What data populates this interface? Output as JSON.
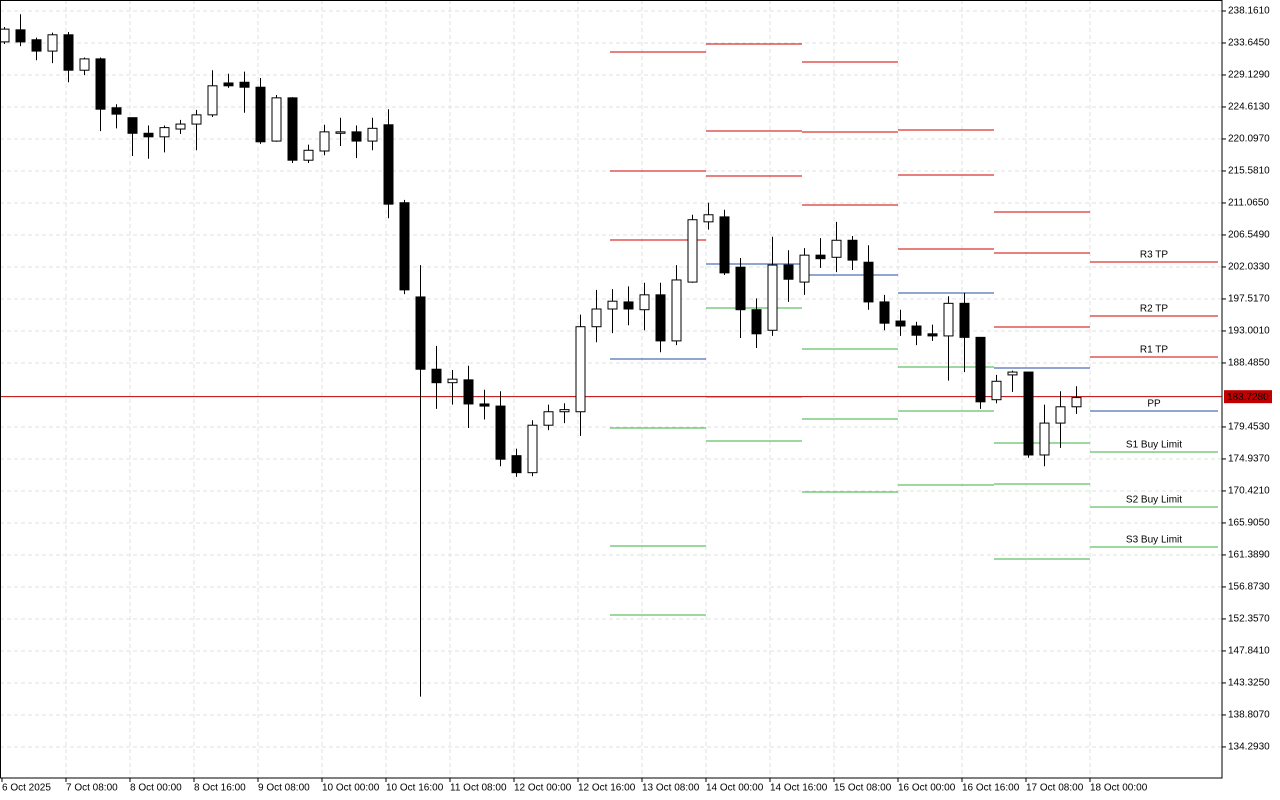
{
  "chart_data": {
    "type": "candlestick",
    "categories": [
      "6 Oct 2025",
      null,
      null,
      null,
      "7 Oct 08:00",
      null,
      null,
      null,
      "8 Oct 00:00",
      null,
      null,
      null,
      "8 Oct 16:00",
      null,
      null,
      null,
      "9 Oct 08:00",
      null,
      null,
      null,
      "10 Oct 00:00",
      null,
      null,
      null,
      "10 Oct 16:00",
      null,
      null,
      null,
      "11 Oct 08:00",
      null,
      null,
      null,
      "12 Oct 00:00",
      null,
      null,
      null,
      "12 Oct 16:00",
      null,
      null,
      null,
      "13 Oct 08:00",
      null,
      null,
      null,
      "14 Oct 00:00",
      null,
      null,
      null,
      "14 Oct 16:00",
      null,
      null,
      null,
      "15 Oct 08:00",
      null,
      null,
      null,
      "16 Oct 00:00",
      null,
      null,
      null,
      "16 Oct 16:00",
      null,
      null,
      null,
      "17 Oct 08:00",
      null,
      null,
      null,
      "18 Oct 00:00"
    ],
    "open": [
      233.8,
      235.5,
      234.1,
      232.5,
      234.8,
      229.8,
      231.4,
      224.5,
      223.1,
      220.9,
      220.4,
      221.5,
      222.2,
      223.5,
      228.0,
      228.1,
      227.4,
      219.8,
      225.9,
      217.1,
      218.4,
      220.9,
      221.1,
      219.8,
      222.1,
      211.1,
      197.8,
      187.6,
      185.7,
      186.1,
      182.7,
      182.4,
      175.4,
      173.0,
      179.7,
      181.6,
      181.6,
      193.6,
      196.1,
      197.1,
      196.0,
      198.1,
      191.6,
      199.9,
      208.4,
      209.1,
      202.0,
      196.0,
      193.1,
      202.3,
      199.9,
      203.7,
      203.4,
      205.8,
      202.7,
      197.1,
      194.4,
      193.7,
      192.6,
      192.3,
      196.9,
      192.1,
      183.3,
      186.8,
      187.2,
      175.5,
      180.0,
      182.3,
      null
    ],
    "high": [
      235.9,
      237.7,
      234.4,
      235.1,
      235.2,
      231.6,
      231.6,
      225.0,
      223.1,
      222.0,
      222.0,
      222.8,
      224.2,
      229.8,
      229.3,
      229.6,
      228.7,
      226.3,
      226.0,
      219.3,
      222.1,
      223.1,
      222.0,
      223.1,
      224.3,
      211.5,
      202.3,
      190.9,
      187.5,
      188.1,
      184.7,
      184.5,
      176.4,
      180.4,
      182.6,
      182.8,
      195.3,
      198.8,
      198.9,
      199.3,
      199.8,
      199.8,
      202.3,
      209.4,
      211.1,
      210.1,
      203.3,
      197.6,
      206.3,
      204.4,
      204.7,
      206.1,
      208.4,
      206.4,
      205.1,
      198.1,
      196.0,
      194.3,
      193.9,
      197.9,
      198.4,
      192.1,
      186.8,
      187.4,
      187.2,
      182.6,
      184.5,
      185.2,
      null
    ],
    "low": [
      233.5,
      233.2,
      231.2,
      230.8,
      228.1,
      229.1,
      221.2,
      221.6,
      217.7,
      217.3,
      218.2,
      220.8,
      218.5,
      223.2,
      227.3,
      223.8,
      219.4,
      219.7,
      216.7,
      216.7,
      217.8,
      219.1,
      217.4,
      218.5,
      208.9,
      198.2,
      141.4,
      182.0,
      182.6,
      179.3,
      180.5,
      173.9,
      172.4,
      172.5,
      179.0,
      180.0,
      178.2,
      191.4,
      192.7,
      193.8,
      193.1,
      190.0,
      191.0,
      199.8,
      207.3,
      200.9,
      192.0,
      190.6,
      192.3,
      197.1,
      198.1,
      201.9,
      201.3,
      201.6,
      196.0,
      193.1,
      192.3,
      191.0,
      191.6,
      186.0,
      187.2,
      182.0,
      182.8,
      184.4,
      175.1,
      173.9,
      176.5,
      181.3,
      null
    ],
    "close": [
      235.6,
      233.8,
      232.5,
      234.8,
      229.8,
      231.4,
      224.3,
      223.6,
      220.9,
      220.4,
      221.7,
      222.2,
      223.5,
      227.6,
      227.6,
      227.4,
      219.7,
      225.9,
      217.1,
      218.5,
      221.1,
      221.1,
      219.8,
      221.6,
      210.9,
      198.8,
      187.6,
      185.7,
      186.2,
      182.7,
      182.4,
      174.9,
      173.0,
      179.7,
      181.6,
      181.9,
      193.6,
      196.1,
      197.2,
      196.1,
      198.1,
      191.6,
      200.2,
      208.7,
      209.4,
      201.2,
      196.0,
      192.6,
      202.3,
      200.3,
      203.7,
      203.2,
      205.8,
      203.0,
      197.1,
      194.1,
      193.7,
      192.4,
      192.3,
      196.9,
      192.1,
      183.0,
      185.9,
      187.2,
      175.5,
      180.0,
      182.3,
      183.6,
      null
    ],
    "up_color": "#ffffff",
    "down_color": "#000000",
    "wick_color": "#000000",
    "ylim": [
      129.91,
      239.71
    ],
    "yticks": [
      {
        "value": 238.161,
        "label": "238.1610"
      },
      {
        "value": 233.645,
        "label": "233.6450"
      },
      {
        "value": 229.129,
        "label": "229.1290"
      },
      {
        "value": 224.613,
        "label": "224.6130"
      },
      {
        "value": 220.097,
        "label": "220.0970"
      },
      {
        "value": 215.581,
        "label": "215.5810"
      },
      {
        "value": 211.065,
        "label": "211.0650"
      },
      {
        "value": 206.549,
        "label": "206.5490"
      },
      {
        "value": 202.033,
        "label": "202.0330"
      },
      {
        "value": 197.517,
        "label": "197.5170"
      },
      {
        "value": 193.001,
        "label": "193.0010"
      },
      {
        "value": 188.485,
        "label": "188.4850"
      },
      {
        "value": 179.453,
        "label": "179.4530"
      },
      {
        "value": 174.937,
        "label": "174.9370"
      },
      {
        "value": 170.421,
        "label": "170.4210"
      },
      {
        "value": 165.905,
        "label": "165.9050"
      },
      {
        "value": 161.389,
        "label": "161.3890"
      },
      {
        "value": 156.873,
        "label": "156.8730"
      },
      {
        "value": 152.357,
        "label": "152.3570"
      },
      {
        "value": 147.841,
        "label": "147.8410"
      },
      {
        "value": 143.325,
        "label": "143.3250"
      },
      {
        "value": 138.807,
        "label": "138.8070"
      },
      {
        "value": 134.293,
        "label": "134.2930"
      }
    ],
    "grid": true,
    "current_price": {
      "value": 183.728,
      "label": "183.7280",
      "color": "#c00000"
    },
    "pivots": [
      {
        "name": "R3 TP",
        "color": "#d00000",
        "values": [
          232.37,
          233.5,
          230.96,
          221.37,
          209.79,
          202.74
        ]
      },
      {
        "name": "R2 TP",
        "color": "#d00000",
        "values": [
          215.58,
          221.23,
          221.08,
          215.02,
          204.01,
          195.12
        ]
      },
      {
        "name": "R1 TP",
        "color": "#d00000",
        "values": [
          205.84,
          214.87,
          210.78,
          204.57,
          193.56,
          189.33
        ]
      },
      {
        "name": "PP",
        "color": "#1f4fa0",
        "values": [
          189.05,
          202.45,
          200.9,
          198.36,
          187.78,
          181.71
        ]
      },
      {
        "name": "S1 Buy Limit",
        "color": "#3cb043",
        "values": [
          179.31,
          196.25,
          190.46,
          187.92,
          177.19,
          175.92
        ]
      },
      {
        "name": "S2 Buy Limit",
        "color": "#3cb043",
        "values": [
          162.66,
          183.68,
          180.58,
          181.71,
          171.41,
          168.16
        ]
      },
      {
        "name": "S3 Buy Limit",
        "color": "#3cb043",
        "values": [
          152.92,
          177.48,
          170.28,
          171.27,
          160.82,
          162.51
        ]
      }
    ]
  }
}
